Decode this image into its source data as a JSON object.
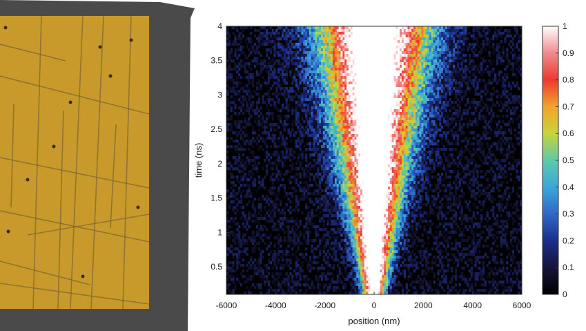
{
  "chart_data": {
    "type": "heatmap",
    "title": "",
    "xlabel": "position (nm)",
    "ylabel": "time (ns)",
    "xlim": [
      -6000,
      6000
    ],
    "ylim": [
      0.1,
      4
    ],
    "x_ticks": [
      "-6000",
      "-4000",
      "-2000",
      "0",
      "2000",
      "4000",
      "6000"
    ],
    "x_tick_values": [
      -6000,
      -4000,
      -2000,
      0,
      2000,
      4000,
      6000
    ],
    "y_ticks": [
      "0.5",
      "1",
      "1.5",
      "2",
      "2.5",
      "3",
      "3.5",
      "4"
    ],
    "y_tick_values": [
      0.5,
      1,
      1.5,
      2,
      2.5,
      3,
      3.5,
      4
    ],
    "colorbar": {
      "ticks": [
        "0",
        "0.1",
        "0.2",
        "0.3",
        "0.4",
        "0.5",
        "0.6",
        "0.7",
        "0.8",
        "0.9",
        "1"
      ],
      "tick_values": [
        0,
        0.1,
        0.2,
        0.3,
        0.4,
        0.5,
        0.6,
        0.7,
        0.8,
        0.9,
        1
      ],
      "range": [
        0,
        1
      ]
    },
    "colormap": [
      "#000000",
      "#15153a",
      "#1a2f8c",
      "#2f68c8",
      "#39a8dc",
      "#5ec9a8",
      "#c8d43a",
      "#f2a42a",
      "#ec3a2e",
      "#f08a8c",
      "#ffffff"
    ],
    "distribution": {
      "center_nm": 0,
      "width_nm_at_start": 300,
      "width_nm_at_end": 1650
    }
  },
  "photo": {
    "colors": {
      "background": "#c89a2c",
      "line": "#7b6430",
      "frame": "#4a4a4a"
    }
  }
}
